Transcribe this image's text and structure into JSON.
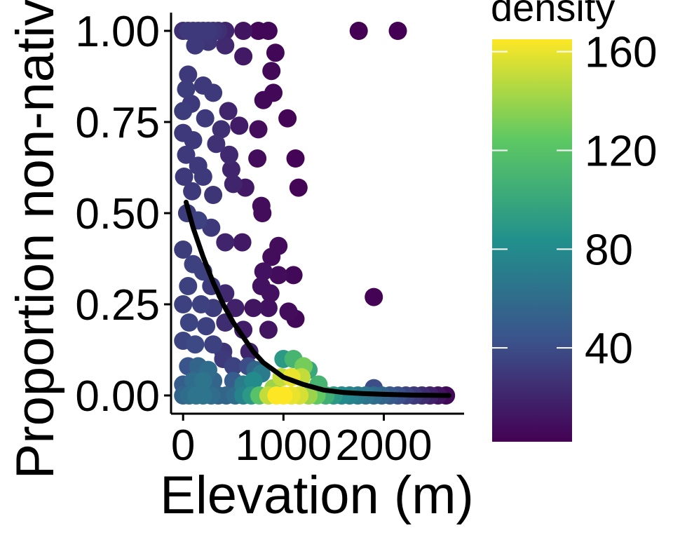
{
  "chart_data": {
    "type": "scatter",
    "title": "",
    "xlabel": "Elevation (m)",
    "ylabel": "Proportion non-native",
    "xlim": [
      -120,
      2800
    ],
    "ylim": [
      -0.05,
      1.05
    ],
    "x_ticks": [
      {
        "value": 0,
        "label": "0"
      },
      {
        "value": 1000,
        "label": "1000"
      },
      {
        "value": 2000,
        "label": "2000"
      }
    ],
    "y_ticks": [
      {
        "value": 0.0,
        "label": "0.00"
      },
      {
        "value": 0.25,
        "label": "0.25"
      },
      {
        "value": 0.5,
        "label": "0.50"
      },
      {
        "value": 0.75,
        "label": "0.75"
      },
      {
        "value": 1.0,
        "label": "1.00"
      }
    ],
    "grid": false,
    "legend": {
      "title": "density",
      "placement": "right",
      "type": "colorbar",
      "range": [
        2,
        165
      ],
      "ticks": [
        {
          "value": 40,
          "label": "40"
        },
        {
          "value": 80,
          "label": "80"
        },
        {
          "value": 120,
          "label": "120"
        },
        {
          "value": 160,
          "label": "160"
        }
      ],
      "colors": [
        "#440154",
        "#3b528b",
        "#21908c",
        "#5dc863",
        "#fde725"
      ]
    },
    "fit_line": {
      "name": "fitted curve",
      "color": "#000000",
      "points": [
        [
          30,
          0.53
        ],
        [
          100,
          0.46
        ],
        [
          200,
          0.38
        ],
        [
          300,
          0.31
        ],
        [
          400,
          0.25
        ],
        [
          500,
          0.2
        ],
        [
          600,
          0.16
        ],
        [
          700,
          0.12
        ],
        [
          800,
          0.09
        ],
        [
          900,
          0.07
        ],
        [
          1000,
          0.05
        ],
        [
          1100,
          0.04
        ],
        [
          1200,
          0.03
        ],
        [
          1400,
          0.015
        ],
        [
          1600,
          0.008
        ],
        [
          1800,
          0.005
        ],
        [
          2000,
          0.003
        ],
        [
          2300,
          0.001
        ],
        [
          2650,
          0.0
        ]
      ]
    },
    "points": [
      {
        "x": 0,
        "y": 1.0,
        "density": 25
      },
      {
        "x": 50,
        "y": 1.0,
        "density": 30
      },
      {
        "x": 100,
        "y": 1.0,
        "density": 30
      },
      {
        "x": 150,
        "y": 1.0,
        "density": 30
      },
      {
        "x": 200,
        "y": 1.0,
        "density": 28
      },
      {
        "x": 250,
        "y": 1.0,
        "density": 30
      },
      {
        "x": 300,
        "y": 1.0,
        "density": 28
      },
      {
        "x": 350,
        "y": 1.0,
        "density": 25
      },
      {
        "x": 420,
        "y": 1.0,
        "density": 20
      },
      {
        "x": 600,
        "y": 1.0,
        "density": 12
      },
      {
        "x": 750,
        "y": 1.0,
        "density": 5
      },
      {
        "x": 850,
        "y": 1.0,
        "density": 5
      },
      {
        "x": 1750,
        "y": 1.0,
        "density": 2
      },
      {
        "x": 2140,
        "y": 1.0,
        "density": 2
      },
      {
        "x": 120,
        "y": 0.96,
        "density": 30
      },
      {
        "x": 250,
        "y": 0.97,
        "density": 28
      },
      {
        "x": 420,
        "y": 0.96,
        "density": 22
      },
      {
        "x": 600,
        "y": 0.93,
        "density": 14
      },
      {
        "x": 920,
        "y": 0.94,
        "density": 5
      },
      {
        "x": 880,
        "y": 0.89,
        "density": 6
      },
      {
        "x": 800,
        "y": 0.81,
        "density": 6
      },
      {
        "x": 900,
        "y": 0.83,
        "density": 6
      },
      {
        "x": 50,
        "y": 0.88,
        "density": 30
      },
      {
        "x": 30,
        "y": 0.84,
        "density": 32
      },
      {
        "x": 200,
        "y": 0.85,
        "density": 30
      },
      {
        "x": 300,
        "y": 0.83,
        "density": 30
      },
      {
        "x": 80,
        "y": 0.8,
        "density": 30
      },
      {
        "x": 0,
        "y": 0.78,
        "density": 32
      },
      {
        "x": 220,
        "y": 0.76,
        "density": 30
      },
      {
        "x": 450,
        "y": 0.78,
        "density": 20
      },
      {
        "x": 560,
        "y": 0.74,
        "density": 15
      },
      {
        "x": 750,
        "y": 0.73,
        "density": 8
      },
      {
        "x": 1040,
        "y": 0.76,
        "density": 4
      },
      {
        "x": 380,
        "y": 0.73,
        "density": 25
      },
      {
        "x": 0,
        "y": 0.72,
        "density": 30
      },
      {
        "x": 100,
        "y": 0.7,
        "density": 30
      },
      {
        "x": 330,
        "y": 0.69,
        "density": 26
      },
      {
        "x": 30,
        "y": 0.66,
        "density": 30
      },
      {
        "x": 150,
        "y": 0.63,
        "density": 30
      },
      {
        "x": 460,
        "y": 0.66,
        "density": 22
      },
      {
        "x": 740,
        "y": 0.65,
        "density": 8
      },
      {
        "x": 1120,
        "y": 0.65,
        "density": 4
      },
      {
        "x": 10,
        "y": 0.6,
        "density": 30
      },
      {
        "x": 200,
        "y": 0.6,
        "density": 30
      },
      {
        "x": 480,
        "y": 0.62,
        "density": 20
      },
      {
        "x": 90,
        "y": 0.56,
        "density": 30
      },
      {
        "x": 300,
        "y": 0.55,
        "density": 28
      },
      {
        "x": 500,
        "y": 0.58,
        "density": 20
      },
      {
        "x": 620,
        "y": 0.57,
        "density": 14
      },
      {
        "x": 1150,
        "y": 0.57,
        "density": 4
      },
      {
        "x": 780,
        "y": 0.52,
        "density": 8
      },
      {
        "x": 790,
        "y": 0.5,
        "density": 8
      },
      {
        "x": 40,
        "y": 0.5,
        "density": 32
      },
      {
        "x": 150,
        "y": 0.48,
        "density": 34
      },
      {
        "x": 280,
        "y": 0.46,
        "density": 30
      },
      {
        "x": 0,
        "y": 0.4,
        "density": 32
      },
      {
        "x": 420,
        "y": 0.42,
        "density": 20
      },
      {
        "x": 590,
        "y": 0.42,
        "density": 14
      },
      {
        "x": 950,
        "y": 0.41,
        "density": 8
      },
      {
        "x": 880,
        "y": 0.38,
        "density": 8
      },
      {
        "x": 800,
        "y": 0.34,
        "density": 10
      },
      {
        "x": 950,
        "y": 0.33,
        "density": 8
      },
      {
        "x": 1100,
        "y": 0.33,
        "density": 6
      },
      {
        "x": 100,
        "y": 0.36,
        "density": 34
      },
      {
        "x": 200,
        "y": 0.34,
        "density": 34
      },
      {
        "x": 50,
        "y": 0.3,
        "density": 34
      },
      {
        "x": 280,
        "y": 0.3,
        "density": 30
      },
      {
        "x": 420,
        "y": 0.28,
        "density": 22
      },
      {
        "x": 780,
        "y": 0.3,
        "density": 10
      },
      {
        "x": 870,
        "y": 0.28,
        "density": 10
      },
      {
        "x": 1900,
        "y": 0.27,
        "density": 3
      },
      {
        "x": 0,
        "y": 0.25,
        "density": 34
      },
      {
        "x": 180,
        "y": 0.25,
        "density": 34
      },
      {
        "x": 300,
        "y": 0.24,
        "density": 32
      },
      {
        "x": 520,
        "y": 0.24,
        "density": 18
      },
      {
        "x": 700,
        "y": 0.24,
        "density": 12
      },
      {
        "x": 850,
        "y": 0.24,
        "density": 10
      },
      {
        "x": 1050,
        "y": 0.23,
        "density": 8
      },
      {
        "x": 1120,
        "y": 0.21,
        "density": 6
      },
      {
        "x": 60,
        "y": 0.2,
        "density": 36
      },
      {
        "x": 230,
        "y": 0.19,
        "density": 34
      },
      {
        "x": 420,
        "y": 0.2,
        "density": 24
      },
      {
        "x": 600,
        "y": 0.18,
        "density": 16
      },
      {
        "x": 850,
        "y": 0.18,
        "density": 12
      },
      {
        "x": 0,
        "y": 0.15,
        "density": 36
      },
      {
        "x": 120,
        "y": 0.14,
        "density": 38
      },
      {
        "x": 300,
        "y": 0.14,
        "density": 34
      },
      {
        "x": 400,
        "y": 0.12,
        "density": 28
      },
      {
        "x": 660,
        "y": 0.12,
        "density": 20
      },
      {
        "x": 400,
        "y": 0.1,
        "density": 30
      },
      {
        "x": 500,
        "y": 0.08,
        "density": 35
      },
      {
        "x": 650,
        "y": 0.08,
        "density": 40
      },
      {
        "x": 720,
        "y": 0.07,
        "density": 55
      },
      {
        "x": 780,
        "y": 0.06,
        "density": 70
      },
      {
        "x": 1000,
        "y": 0.1,
        "density": 90
      },
      {
        "x": 1100,
        "y": 0.1,
        "density": 110
      },
      {
        "x": 1200,
        "y": 0.08,
        "density": 130
      },
      {
        "x": 1250,
        "y": 0.07,
        "density": 100
      },
      {
        "x": 50,
        "y": 0.08,
        "density": 45
      },
      {
        "x": 150,
        "y": 0.08,
        "density": 55
      },
      {
        "x": 250,
        "y": 0.07,
        "density": 60
      },
      {
        "x": 100,
        "y": 0.04,
        "density": 60
      },
      {
        "x": 200,
        "y": 0.04,
        "density": 65
      },
      {
        "x": 300,
        "y": 0.04,
        "density": 55
      },
      {
        "x": 0,
        "y": 0.03,
        "density": 50
      },
      {
        "x": 500,
        "y": 0.04,
        "density": 50
      },
      {
        "x": 700,
        "y": 0.04,
        "density": 80
      },
      {
        "x": 980,
        "y": 0.05,
        "density": 150
      },
      {
        "x": 1080,
        "y": 0.05,
        "density": 160
      },
      {
        "x": 1180,
        "y": 0.05,
        "density": 150
      },
      {
        "x": 1350,
        "y": 0.03,
        "density": 110
      },
      {
        "x": 600,
        "y": 0.03,
        "density": 70
      },
      {
        "x": 900,
        "y": 0.02,
        "density": 140
      },
      {
        "x": 1900,
        "y": 0.02,
        "density": 40
      },
      {
        "x": 0,
        "y": 0.0,
        "density": 55
      },
      {
        "x": 60,
        "y": 0.0,
        "density": 60
      },
      {
        "x": 130,
        "y": 0.0,
        "density": 65
      },
      {
        "x": 200,
        "y": 0.0,
        "density": 65
      },
      {
        "x": 280,
        "y": 0.0,
        "density": 60
      },
      {
        "x": 350,
        "y": 0.0,
        "density": 55
      },
      {
        "x": 430,
        "y": 0.0,
        "density": 55
      },
      {
        "x": 520,
        "y": 0.0,
        "density": 60
      },
      {
        "x": 600,
        "y": 0.0,
        "density": 75
      },
      {
        "x": 680,
        "y": 0.0,
        "density": 90
      },
      {
        "x": 760,
        "y": 0.0,
        "density": 120
      },
      {
        "x": 850,
        "y": 0.0,
        "density": 150
      },
      {
        "x": 930,
        "y": 0.0,
        "density": 165
      },
      {
        "x": 1000,
        "y": 0.0,
        "density": 165
      },
      {
        "x": 1080,
        "y": 0.0,
        "density": 160
      },
      {
        "x": 1160,
        "y": 0.0,
        "density": 155
      },
      {
        "x": 1250,
        "y": 0.0,
        "density": 140
      },
      {
        "x": 1330,
        "y": 0.0,
        "density": 125
      },
      {
        "x": 1420,
        "y": 0.0,
        "density": 105
      },
      {
        "x": 1500,
        "y": 0.0,
        "density": 90
      },
      {
        "x": 1580,
        "y": 0.0,
        "density": 80
      },
      {
        "x": 1660,
        "y": 0.0,
        "density": 75
      },
      {
        "x": 1740,
        "y": 0.0,
        "density": 70
      },
      {
        "x": 1820,
        "y": 0.0,
        "density": 65
      },
      {
        "x": 1900,
        "y": 0.0,
        "density": 60
      },
      {
        "x": 1980,
        "y": 0.0,
        "density": 55
      },
      {
        "x": 2060,
        "y": 0.0,
        "density": 48
      },
      {
        "x": 2140,
        "y": 0.0,
        "density": 42
      },
      {
        "x": 2220,
        "y": 0.0,
        "density": 36
      },
      {
        "x": 2300,
        "y": 0.0,
        "density": 30
      },
      {
        "x": 2380,
        "y": 0.0,
        "density": 24
      },
      {
        "x": 2460,
        "y": 0.0,
        "density": 18
      },
      {
        "x": 2540,
        "y": 0.0,
        "density": 12
      },
      {
        "x": 2620,
        "y": 0.0,
        "density": 6
      }
    ]
  }
}
